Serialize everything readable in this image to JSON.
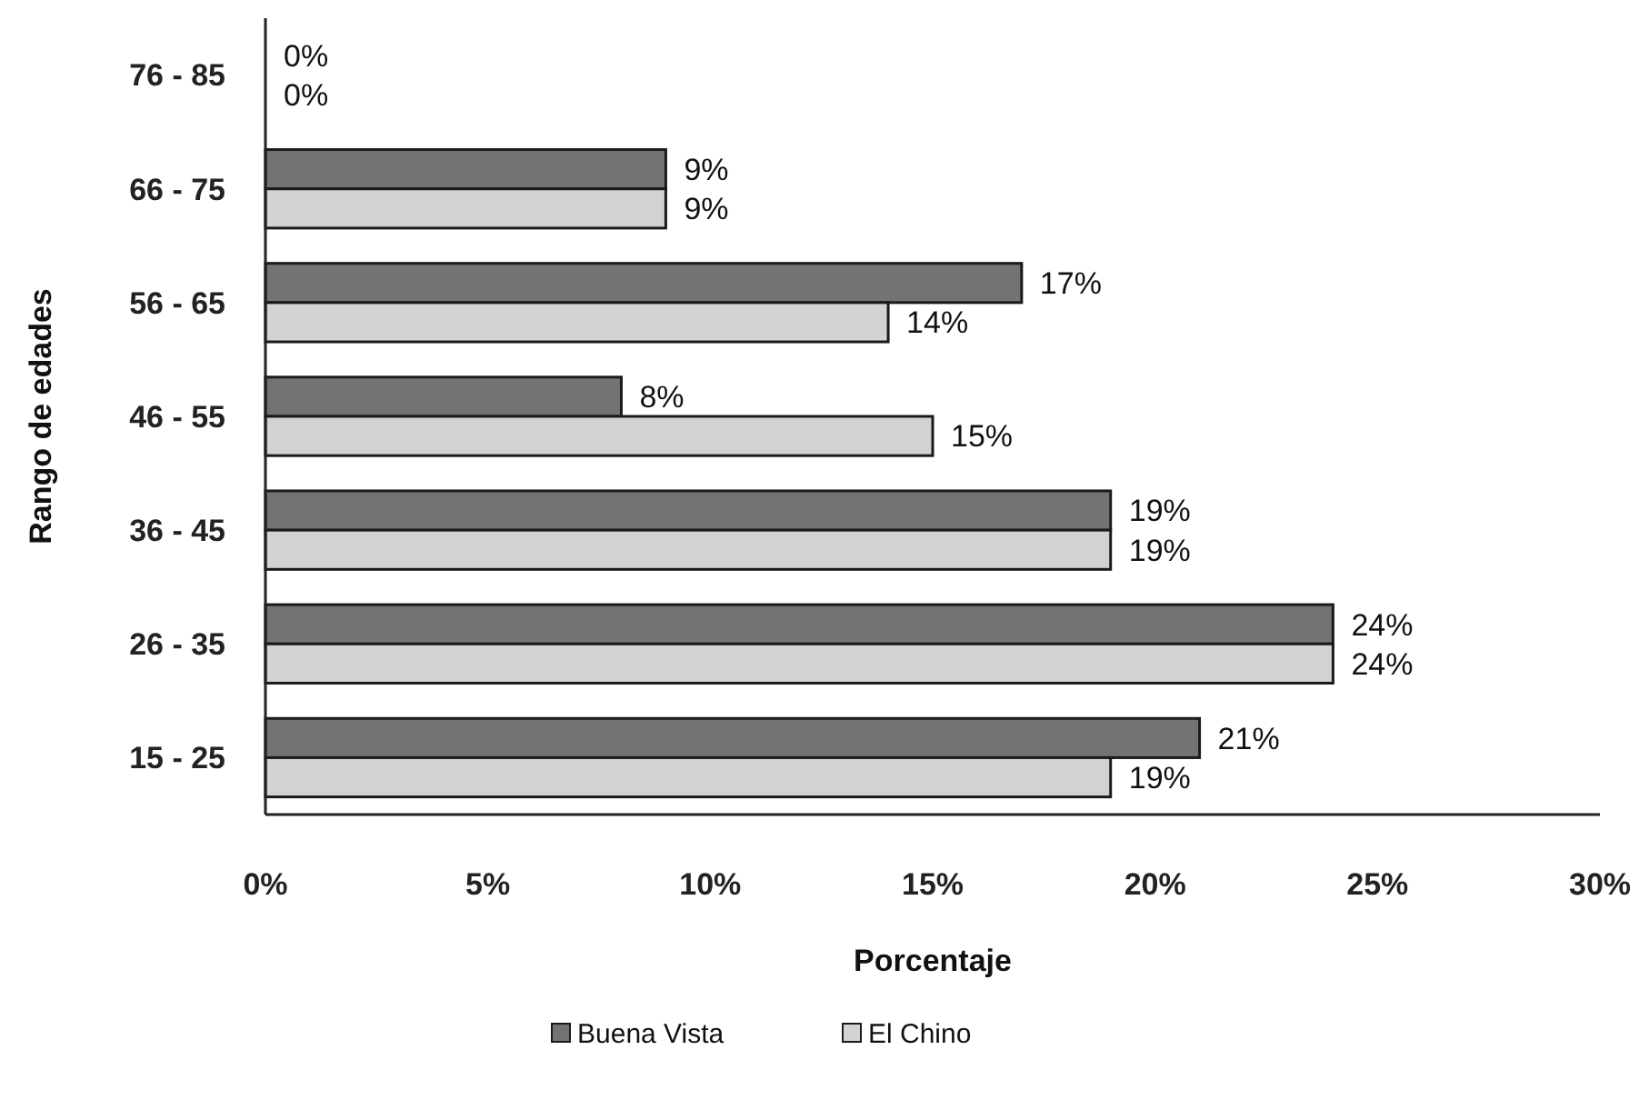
{
  "chart_data": {
    "type": "bar",
    "orientation": "horizontal",
    "xlabel": "Porcentaje",
    "ylabel": "Rango de edades",
    "categories": [
      "76 - 85",
      "66 - 75",
      "56 - 65",
      "46 - 55",
      "36 - 45",
      "26 - 35",
      "15 - 25"
    ],
    "series": [
      {
        "name": "Buena Vista",
        "color": "#737373",
        "values": [
          0,
          9,
          17,
          8,
          19,
          24,
          21
        ],
        "value_labels": [
          "0%",
          "9%",
          "17%",
          "8%",
          "19%",
          "24%",
          "21%"
        ]
      },
      {
        "name": "El Chino",
        "color": "#d2d2d2",
        "values": [
          0,
          9,
          14,
          15,
          19,
          24,
          19
        ],
        "value_labels": [
          "0%",
          "9%",
          "14%",
          "15%",
          "19%",
          "24%",
          "19%"
        ]
      }
    ],
    "xlim": [
      0,
      30
    ],
    "xticks": [
      {
        "value": 0,
        "label": "0%"
      },
      {
        "value": 5,
        "label": "5%"
      },
      {
        "value": 10,
        "label": "10%"
      },
      {
        "value": 15,
        "label": "15%"
      },
      {
        "value": 20,
        "label": "20%"
      },
      {
        "value": 25,
        "label": "25%"
      },
      {
        "value": 30,
        "label": "30%"
      }
    ],
    "legend": "bottom"
  }
}
